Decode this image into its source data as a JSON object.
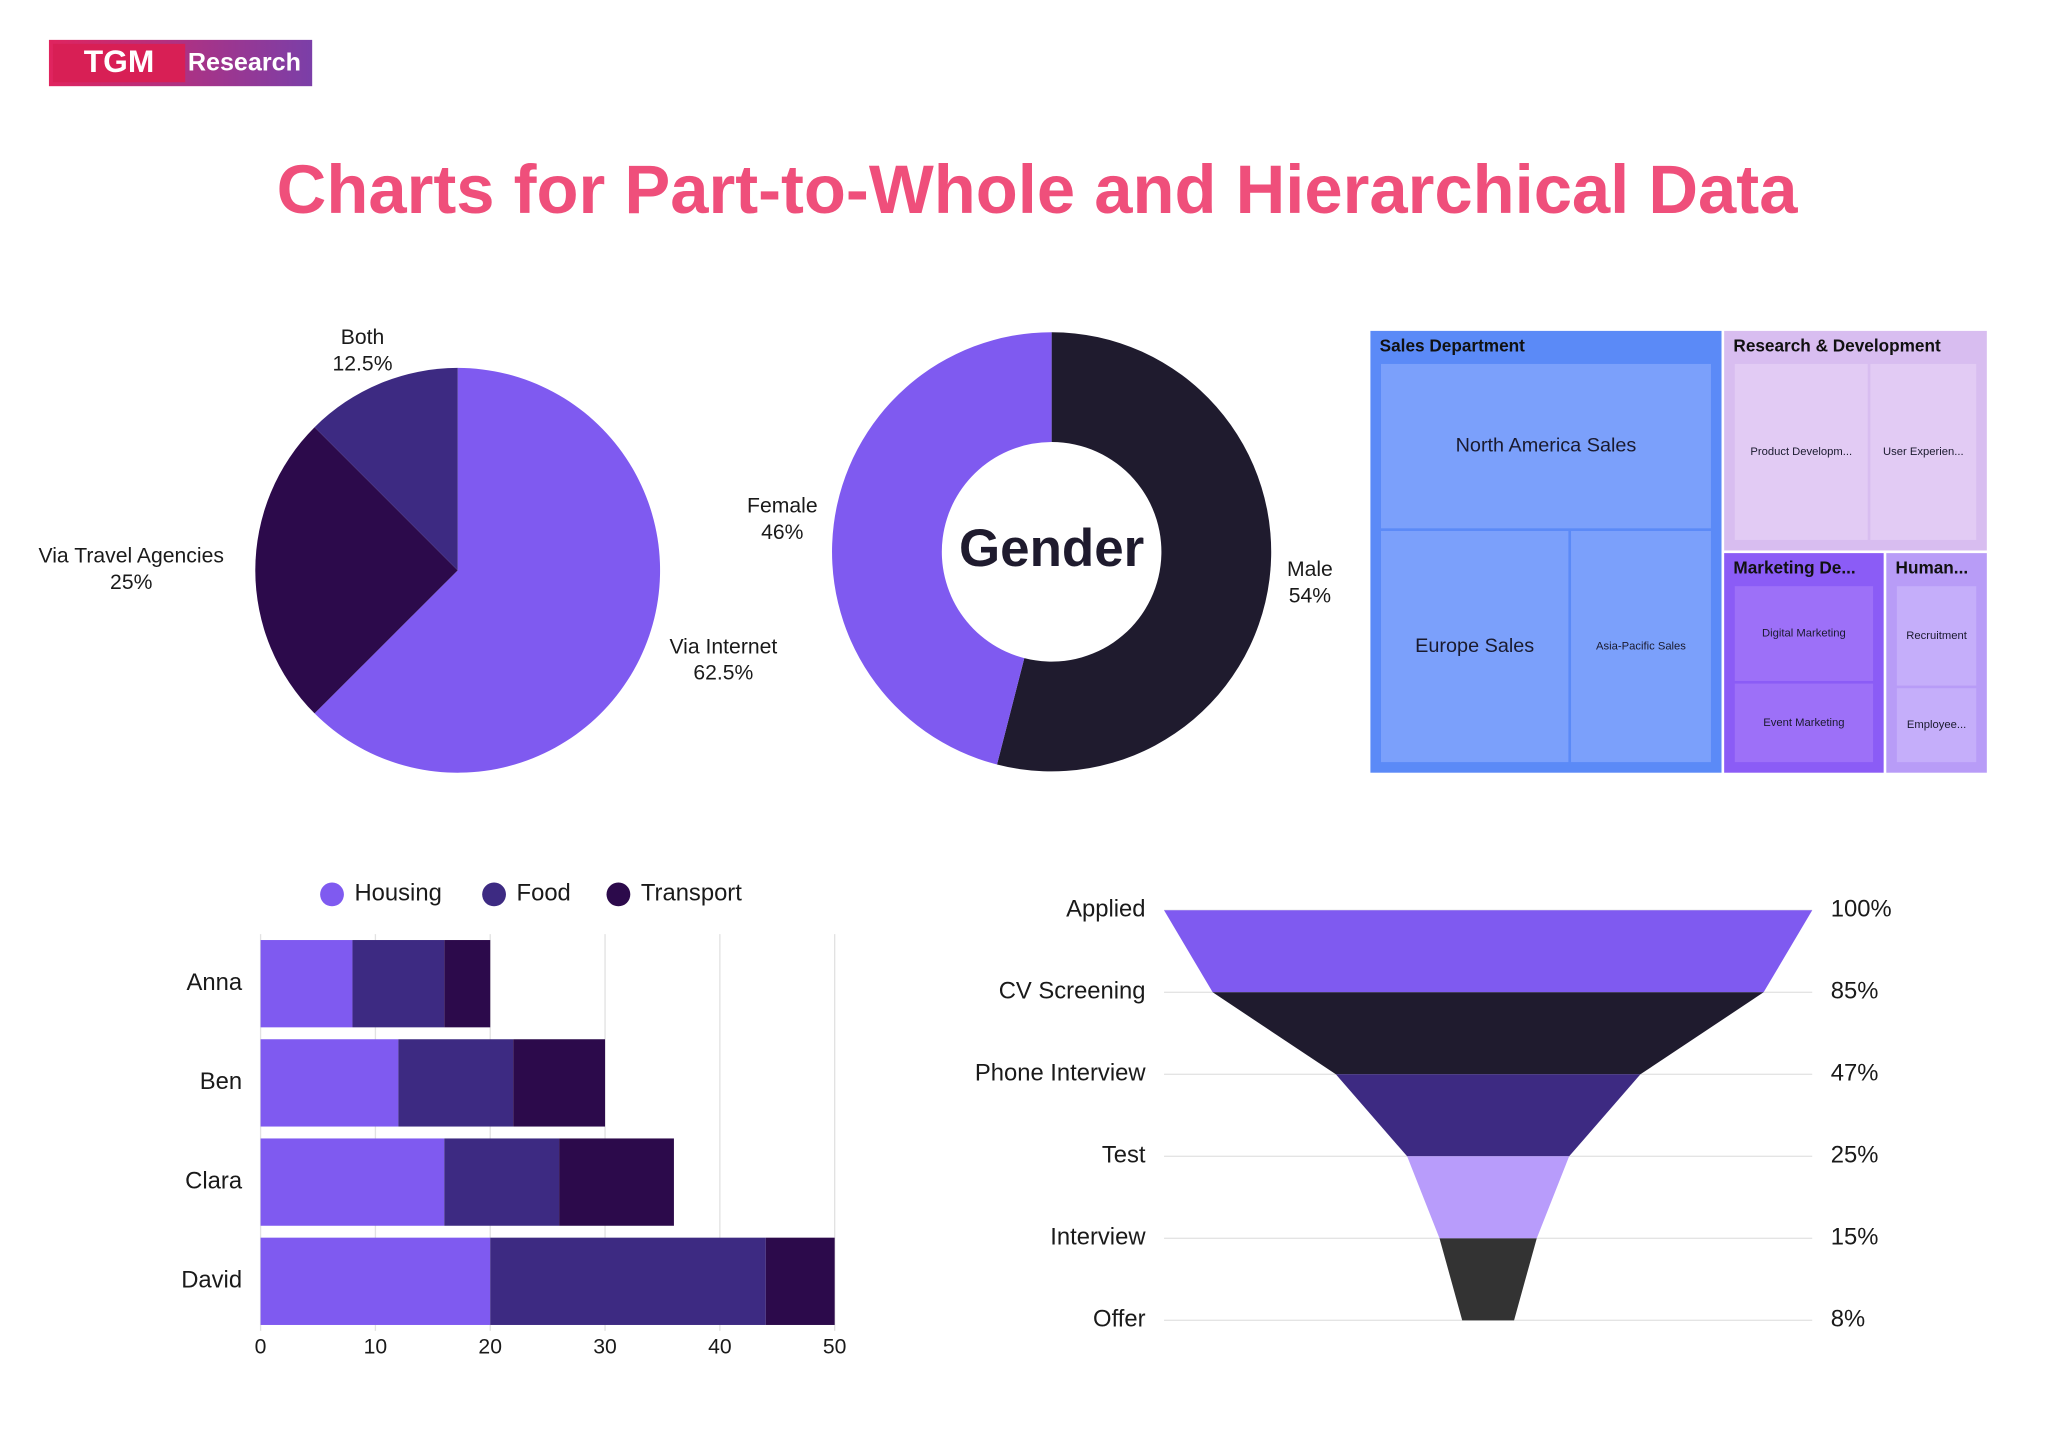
{
  "header": {
    "logo_mark": "TGM",
    "logo_text": "Research",
    "title": "Charts for Part-to-Whole and Hierarchical Data"
  },
  "chart_data": [
    {
      "type": "pie",
      "categories": [
        "Via Internet",
        "Via Travel Agencies",
        "Both"
      ],
      "values": [
        62.5,
        25,
        12.5
      ],
      "value_labels": [
        "62.5%",
        "25%",
        "12.5%"
      ],
      "colors": [
        "#7f5af0",
        "#2c0a4b",
        "#3d2a82"
      ]
    },
    {
      "type": "donut",
      "center_label": "Gender",
      "categories": [
        "Male",
        "Female"
      ],
      "values": [
        54,
        46
      ],
      "value_labels": [
        "54%",
        "46%"
      ],
      "colors": [
        "#1f1b2e",
        "#7f5af0"
      ]
    },
    {
      "type": "treemap",
      "groups": [
        {
          "name": "Sales Department",
          "color": "#5b8af7",
          "leaf_color": "#7ba0fb",
          "children": [
            {
              "name": "North America Sales",
              "value": 20
            },
            {
              "name": "Europe Sales",
              "value": 16
            },
            {
              "name": "Asia-Pacific Sales",
              "value": 12
            }
          ]
        },
        {
          "name": "Research & Development",
          "color": "#d8bdf0",
          "leaf_color": "#e2cbf4",
          "children": [
            {
              "name": "Product Developm...",
              "value": 10
            },
            {
              "name": "User Experien...",
              "value": 8
            }
          ]
        },
        {
          "name": "Marketing De...",
          "color": "#8b5cf6",
          "leaf_color": "#9d70f8",
          "children": [
            {
              "name": "Digital Marketing",
              "value": 6
            },
            {
              "name": "Event Marketing",
              "value": 5
            }
          ]
        },
        {
          "name": "Human...",
          "color": "#b89cf7",
          "leaf_color": "#c5aefa",
          "children": [
            {
              "name": "Recruitment",
              "value": 4
            },
            {
              "name": "Employee...",
              "value": 3
            }
          ]
        }
      ]
    },
    {
      "type": "bar",
      "orientation": "horizontal",
      "stacked": true,
      "categories": [
        "Anna",
        "Ben",
        "Clara",
        "David"
      ],
      "series": [
        {
          "name": "Housing",
          "color": "#7f5af0",
          "values": [
            8,
            12,
            16,
            20
          ]
        },
        {
          "name": "Food",
          "color": "#3d2a82",
          "values": [
            8,
            10,
            10,
            24
          ]
        },
        {
          "name": "Transport",
          "color": "#2c0a4b",
          "values": [
            4,
            8,
            10,
            6
          ]
        }
      ],
      "xlim": [
        0,
        50
      ],
      "xticks": [
        0,
        10,
        20,
        30,
        40,
        50
      ],
      "grid": true,
      "legend": "top"
    },
    {
      "type": "funnel",
      "categories": [
        "Applied",
        "CV Screening",
        "Phone Interview",
        "Test",
        "Interview",
        "Offer"
      ],
      "values": [
        100,
        85,
        47,
        25,
        15,
        8
      ],
      "value_labels": [
        "100%",
        "85%",
        "47%",
        "25%",
        "15%",
        "8%"
      ],
      "band_colors": [
        "#7f5af0",
        "#1f1b2e",
        "#3d2a82",
        "#b89cfb",
        "#333333"
      ],
      "grid": true
    }
  ]
}
